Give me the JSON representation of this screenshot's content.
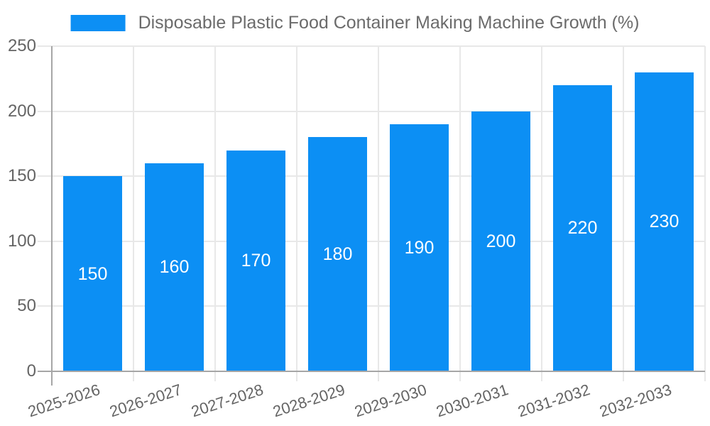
{
  "legend": {
    "label": "Disposable Plastic Food Container Making Machine Growth (%)",
    "swatch_color": "#0C8FF4"
  },
  "chart_data": {
    "type": "bar",
    "title": "",
    "xlabel": "",
    "ylabel": "",
    "categories": [
      "2025-2026",
      "2026-2027",
      "2027-2028",
      "2028-2029",
      "2029-2030",
      "2030-2031",
      "2031-2032",
      "2032-2033"
    ],
    "series": [
      {
        "name": "Disposable Plastic Food Container Making Machine Growth (%)",
        "values": [
          150,
          160,
          170,
          180,
          190,
          200,
          220,
          230
        ]
      }
    ],
    "value_labels": [
      150,
      160,
      170,
      180,
      190,
      200,
      220,
      230
    ],
    "value_label_position": "inside-center",
    "ylim": [
      0,
      250
    ],
    "yticks": [
      0,
      50,
      100,
      150,
      200,
      250
    ],
    "grid": true,
    "legend_position": "top-center",
    "x_label_rotation_deg": -18
  },
  "colors": {
    "bar": "#0C8FF4",
    "grid": "#e8e8e8",
    "axis": "#a6a6a6",
    "tick_text": "#646464",
    "legend_text": "#6b6b6b",
    "value_label_text": "#ffffff",
    "background": "#ffffff"
  }
}
